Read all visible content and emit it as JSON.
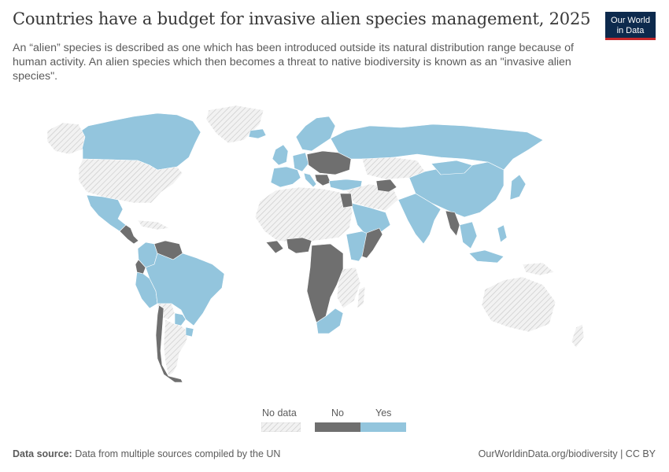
{
  "header": {
    "title": "Countries have a budget for invasive alien species management, 2025",
    "subtitle": "An “alien” species is described as one which has been introduced outside its natural distribution range because of human activity. An alien species which then becomes a threat to native biodiversity is known as an \"invasive alien species\"."
  },
  "logo": {
    "line1": "Our World",
    "line2": "in Data"
  },
  "legend": {
    "items": [
      {
        "label": "No data",
        "color": "hatched-light-gray"
      },
      {
        "label": "No",
        "color": "#6f6f6f"
      },
      {
        "label": "Yes",
        "color": "#93c5dd"
      }
    ]
  },
  "colors": {
    "yes": "#93c5dd",
    "no": "#6f6f6f",
    "no_data": "#ececec",
    "border": "#ffffff",
    "hatch": "#c9c9c9"
  },
  "map_data": {
    "type": "choropleth",
    "year": 2025,
    "regions": {
      "yes": [
        "Canada",
        "Mexico",
        "Brazil",
        "Colombia",
        "Peru",
        "Argentina",
        "Uruguay",
        "Russia",
        "China",
        "India",
        "Pakistan",
        "Saudi Arabia",
        "Yemen",
        "Oman",
        "Ethiopia",
        "Kenya",
        "Madagascar",
        "South Africa",
        "Mongolia",
        "Korea",
        "Japan",
        "Philippines",
        "Indonesia",
        "Thailand",
        "Cambodia",
        "Vietnam",
        "Norway",
        "Sweden",
        "Finland",
        "France",
        "Spain",
        "Italy",
        "Germany",
        "United Kingdom",
        "Ireland",
        "Turkey",
        "Iceland"
      ],
      "no": [
        "Venezuela",
        "Ecuador",
        "Chile",
        "Nicaragua",
        "Guatemala",
        "Honduras",
        "Nigeria",
        "DR Congo",
        "Angola",
        "Zambia",
        "Namibia",
        "Botswana",
        "Tanzania",
        "Somalia",
        "Myanmar",
        "Afghanistan",
        "Tunisia",
        "Egypt",
        "Poland",
        "Ukraine",
        "Romania",
        "Belarus"
      ],
      "no_data": [
        "United States",
        "Greenland",
        "Australia",
        "Kazakhstan",
        "Iran",
        "Algeria",
        "Libya",
        "Mali",
        "Niger",
        "Chad",
        "Sudan",
        "Mozambique",
        "Bolivia",
        "Paraguay",
        "Papua New Guinea",
        "New Zealand",
        "Iraq",
        "Morocco",
        "Mauritania",
        "Cameroon"
      ]
    }
  },
  "footer": {
    "source_label": "Data source:",
    "source_text": "Data from multiple sources compiled by the UN",
    "link_text": "OurWorldinData.org/biodiversity | CC BY"
  }
}
